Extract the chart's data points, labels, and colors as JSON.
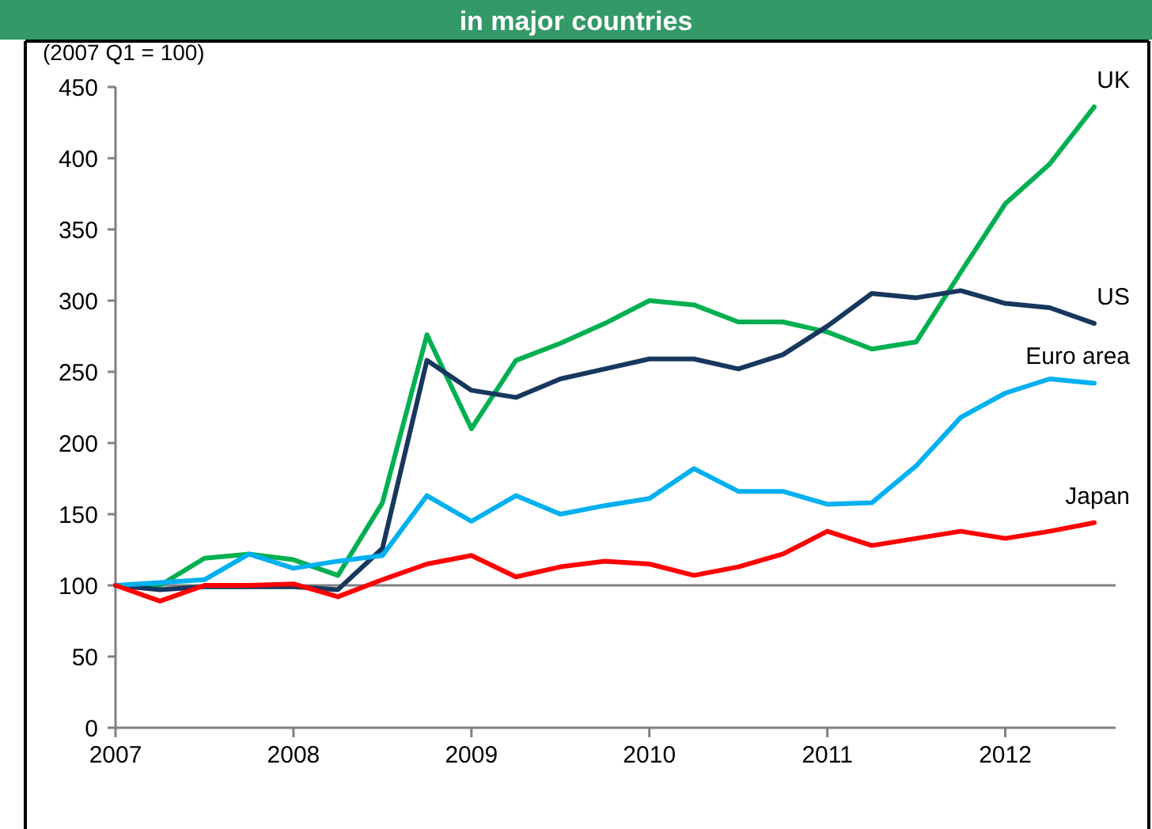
{
  "chart_data": {
    "type": "line",
    "title": "in major countries",
    "ylabel": "(2007 Q1 = 100)",
    "x": [
      2007,
      2007.25,
      2007.5,
      2007.75,
      2008,
      2008.25,
      2008.5,
      2008.75,
      2009,
      2009.25,
      2009.5,
      2009.75,
      2010,
      2010.25,
      2010.5,
      2010.75,
      2011,
      2011.25,
      2011.5,
      2011.75,
      2012,
      2012.25,
      2012.5
    ],
    "xlim": [
      2007,
      2012.62
    ],
    "xticks": [
      2007,
      2008,
      2009,
      2010,
      2011,
      2012
    ],
    "ylim": [
      0,
      450
    ],
    "yticks": [
      0,
      50,
      100,
      150,
      200,
      250,
      300,
      350,
      400,
      450
    ],
    "grid": false,
    "marker": "none",
    "line_style": "solid",
    "ref_lines": [
      {
        "axis": "y",
        "value": 100,
        "color": "#808080"
      }
    ],
    "series": [
      {
        "name": "UK",
        "color": "#00b050",
        "values": [
          100,
          100,
          119,
          122,
          118,
          107,
          158,
          276,
          210,
          258,
          270,
          284,
          300,
          297,
          285,
          285,
          278,
          266,
          271,
          320,
          368,
          396,
          436
        ]
      },
      {
        "name": "US",
        "color": "#17375e",
        "values": [
          100,
          97,
          99,
          99,
          99,
          97,
          126,
          258,
          237,
          232,
          245,
          252,
          259,
          259,
          252,
          262,
          282,
          305,
          302,
          307,
          298,
          295,
          284
        ]
      },
      {
        "name": "Euro area",
        "color": "#00b0f0",
        "values": [
          100,
          102,
          104,
          122,
          112,
          117,
          121,
          163,
          145,
          163,
          150,
          156,
          161,
          182,
          166,
          166,
          157,
          158,
          184,
          218,
          235,
          245,
          242
        ]
      },
      {
        "name": "Japan",
        "color": "#ff0000",
        "values": [
          100,
          89,
          100,
          100,
          101,
          92,
          104,
          115,
          121,
          106,
          113,
          117,
          115,
          107,
          113,
          122,
          138,
          128,
          133,
          138,
          133,
          138,
          144
        ]
      }
    ]
  }
}
